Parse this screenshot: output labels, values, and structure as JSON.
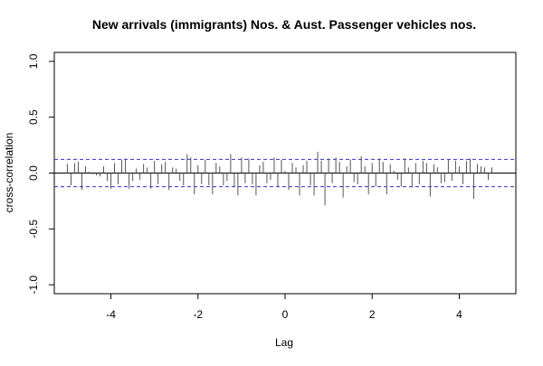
{
  "chart_data": {
    "type": "bar",
    "title": "New arrivals (immigrants) Nos. & Aust. Passenger vehicles nos.",
    "xlabel": "Lag",
    "ylabel": "cross-correlation",
    "xlim": [
      -5.3,
      5.3
    ],
    "ylim": [
      -1.08,
      1.08
    ],
    "xticks": [
      -4,
      -2,
      0,
      2,
      4
    ],
    "yticks": [
      -1.0,
      -0.5,
      0.0,
      0.5,
      1.0
    ],
    "xtick_labels": [
      "-4",
      "-2",
      "0",
      "2",
      "4"
    ],
    "ytick_labels": [
      "-1.0",
      "-0.5",
      "0.0",
      "0.5",
      "1.0"
    ],
    "lag_start": -5,
    "lag_step": 0.08333,
    "confidence_bound": 0.122,
    "colors": {
      "bars": "#555555",
      "bound": "#3333cc",
      "zero": "#000000",
      "frame": "#000000"
    },
    "values": [
      0.08,
      -0.11,
      0.09,
      0.1,
      -0.15,
      0.06,
      0.01,
      -0.01,
      -0.02,
      -0.03,
      0.06,
      -0.07,
      -0.14,
      0.09,
      -0.1,
      0.12,
      0.13,
      -0.14,
      -0.07,
      0.04,
      -0.06,
      0.08,
      0.05,
      -0.14,
      0.11,
      -0.1,
      0.08,
      0.1,
      -0.15,
      0.05,
      0.04,
      -0.07,
      -0.11,
      0.17,
      0.14,
      -0.19,
      0.07,
      -0.1,
      0.12,
      -0.11,
      -0.19,
      0.09,
      0.06,
      -0.11,
      -0.07,
      0.17,
      -0.12,
      -0.2,
      0.14,
      -0.09,
      0.13,
      -0.1,
      -0.2,
      0.07,
      0.1,
      -0.09,
      -0.06,
      0.14,
      -0.12,
      0.12,
      0.02,
      -0.15,
      0.09,
      0.05,
      -0.2,
      0.07,
      0.11,
      -0.11,
      -0.2,
      0.19,
      0.11,
      -0.29,
      0.13,
      -0.09,
      0.14,
      0.1,
      -0.22,
      0.06,
      0.12,
      -0.08,
      -0.1,
      0.15,
      0.06,
      -0.19,
      0.09,
      -0.12,
      0.13,
      0.1,
      -0.19,
      0.08,
      0.02,
      -0.06,
      -0.12,
      0.13,
      0.05,
      -0.13,
      0.09,
      -0.1,
      0.11,
      0.09,
      -0.21,
      0.08,
      0.05,
      -0.09,
      -0.08,
      0.12,
      -0.07,
      0.11,
      0.06,
      -0.1,
      0.11,
      0.13,
      -0.23,
      0.08,
      0.06,
      0.05,
      -0.06,
      0.05
    ]
  }
}
